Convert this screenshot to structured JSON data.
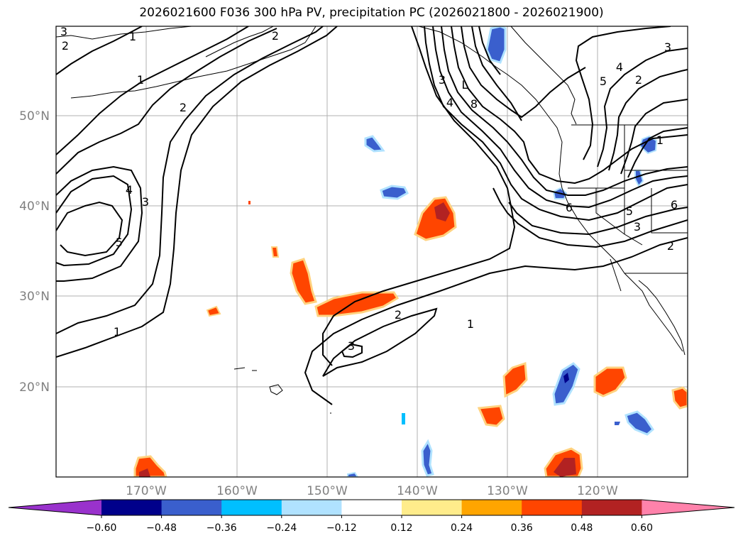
{
  "title": "2026021600 F036 300 hPa PV, precipitation PC (2026021800 - 2026021900)",
  "map": {
    "lon_labels": [
      "170°W",
      "160°W",
      "150°W",
      "140°W",
      "130°W",
      "120°W"
    ],
    "lat_labels": [
      "50°N",
      "40°N",
      "30°N",
      "20°N"
    ],
    "label_color": "#808080",
    "contour_labels": [
      "3",
      "2",
      "1",
      "1",
      "2",
      "4",
      "3",
      "5",
      "3",
      "4",
      "L",
      "8",
      "2",
      "3",
      "1",
      "5",
      "4",
      "2",
      "3",
      "6",
      "5",
      "6",
      "2",
      "2",
      "3",
      "1",
      "1"
    ]
  },
  "colorbar": {
    "tick_labels": [
      "−0.60",
      "−0.48",
      "−0.36",
      "−0.24",
      "−0.12",
      "0.12",
      "0.24",
      "0.36",
      "0.48",
      "0.60"
    ],
    "colors": [
      "#9932cc",
      "#00008b",
      "#3a5fcd",
      "#00bfff",
      "#b0e2ff",
      "#ffffff",
      "#ffec8b",
      "#ffa500",
      "#ff4500",
      "#b22222",
      "#ff82ab"
    ]
  }
}
